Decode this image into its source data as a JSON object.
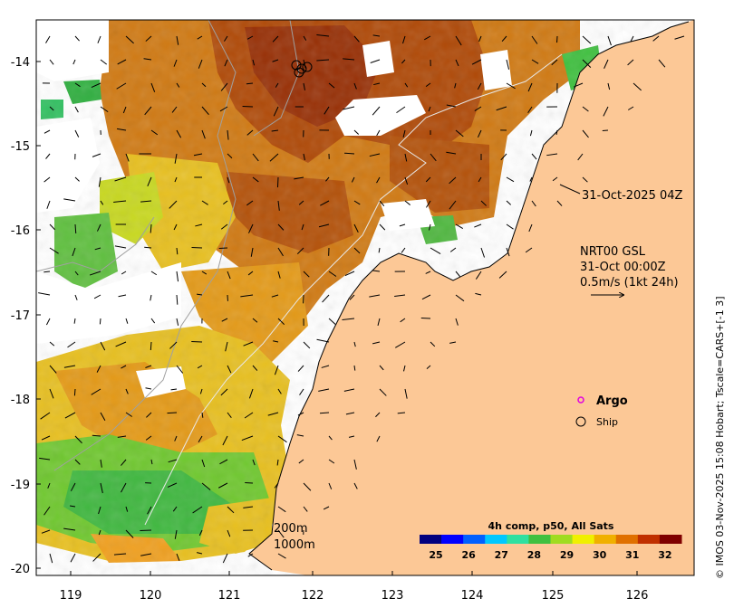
{
  "map": {
    "lon_ticks": [
      "119",
      "120",
      "121",
      "122",
      "123",
      "124",
      "125",
      "126"
    ],
    "lat_ticks": [
      "-14",
      "-15",
      "-16",
      "-17",
      "-18",
      "-19",
      "-20"
    ],
    "colors": {
      "land": "#fcc896",
      "no_data": "#ffffff",
      "frame": "#000000"
    }
  },
  "annotations": {
    "timestamp": "31-Oct-2025 04Z",
    "current_model_line1": "NRT00 GSL",
    "current_model_line2": "31-Oct 00:00Z",
    "current_scale": "0.5m/s (1kt 24h)"
  },
  "legend": {
    "argo_label": "Argo",
    "ship_label": "Ship",
    "argo_color": "#e000e0"
  },
  "bathymetry": {
    "contour_200": "200m",
    "contour_1000": "1000m"
  },
  "colorbar": {
    "title": "4h comp, p50, All Sats",
    "ticks": [
      "25",
      "26",
      "27",
      "28",
      "29",
      "30",
      "31",
      "32"
    ],
    "min": 24.5,
    "max": 32.5,
    "colors": [
      "#00007f",
      "#0000ff",
      "#0060ff",
      "#00c8ff",
      "#30e0a0",
      "#40c040",
      "#a0dc20",
      "#f0f000",
      "#f0b000",
      "#e07000",
      "#c03000",
      "#7f0000"
    ]
  },
  "side_note": "© IMOS 03-Nov-2025 15:08 Hobart; Tscale=CARS+[-1 3]"
}
